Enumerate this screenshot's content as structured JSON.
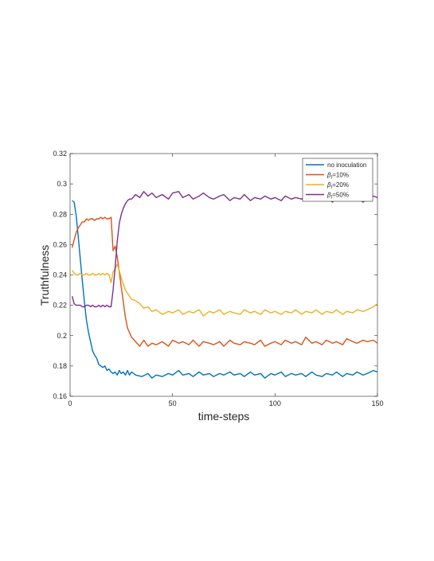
{
  "chart_data": {
    "type": "line",
    "xlabel": "time-steps",
    "ylabel": "Truthfulness",
    "xlim": [
      0,
      150
    ],
    "ylim": [
      0.16,
      0.32
    ],
    "xticks": [
      "0",
      "50",
      "100",
      "150"
    ],
    "yticks": [
      "0.16",
      "0.18",
      "0.2",
      "0.22",
      "0.24",
      "0.26",
      "0.28",
      "0.3",
      "0.32"
    ],
    "grid": false,
    "legend_position": "top-right",
    "series": [
      {
        "name": "no inoculation",
        "color": "#0072BD",
        "x": [
          1,
          2,
          3,
          4,
          5,
          6,
          7,
          8,
          9,
          10,
          11,
          12,
          13,
          14,
          15,
          16,
          17,
          18,
          19,
          20,
          21,
          22,
          23,
          24,
          25,
          26,
          27,
          28,
          29,
          30,
          32,
          35,
          38,
          40,
          42,
          45,
          48,
          50,
          53,
          55,
          58,
          60,
          63,
          65,
          68,
          70,
          73,
          75,
          78,
          80,
          83,
          85,
          88,
          90,
          93,
          95,
          98,
          100,
          103,
          105,
          108,
          110,
          113,
          115,
          118,
          120,
          123,
          125,
          128,
          130,
          133,
          135,
          138,
          140,
          143,
          145,
          148,
          150
        ],
        "y": [
          0.289,
          0.288,
          0.279,
          0.265,
          0.25,
          0.236,
          0.222,
          0.21,
          0.202,
          0.196,
          0.19,
          0.187,
          0.185,
          0.181,
          0.18,
          0.179,
          0.18,
          0.177,
          0.178,
          0.176,
          0.175,
          0.176,
          0.174,
          0.177,
          0.175,
          0.176,
          0.174,
          0.177,
          0.174,
          0.176,
          0.174,
          0.173,
          0.175,
          0.172,
          0.174,
          0.173,
          0.175,
          0.174,
          0.177,
          0.174,
          0.175,
          0.173,
          0.176,
          0.174,
          0.175,
          0.173,
          0.175,
          0.174,
          0.176,
          0.174,
          0.175,
          0.173,
          0.176,
          0.174,
          0.175,
          0.172,
          0.175,
          0.174,
          0.176,
          0.173,
          0.175,
          0.174,
          0.175,
          0.173,
          0.176,
          0.174,
          0.173,
          0.175,
          0.174,
          0.176,
          0.173,
          0.175,
          0.174,
          0.176,
          0.174,
          0.175,
          0.177,
          0.176
        ]
      },
      {
        "name": "β_I=10%",
        "color": "#D95319",
        "x": [
          1,
          2,
          3,
          4,
          5,
          6,
          7,
          8,
          9,
          10,
          11,
          12,
          13,
          14,
          15,
          16,
          17,
          18,
          19,
          20,
          21,
          22,
          23,
          24,
          25,
          26,
          27,
          28,
          29,
          30,
          32,
          34,
          36,
          38,
          40,
          42,
          45,
          48,
          50,
          53,
          55,
          58,
          60,
          63,
          65,
          68,
          70,
          73,
          75,
          78,
          80,
          83,
          85,
          88,
          90,
          93,
          95,
          98,
          100,
          103,
          105,
          108,
          110,
          113,
          115,
          118,
          120,
          123,
          125,
          128,
          130,
          133,
          135,
          138,
          140,
          143,
          145,
          148,
          150
        ],
        "y": [
          0.258,
          0.263,
          0.268,
          0.271,
          0.273,
          0.275,
          0.275,
          0.277,
          0.276,
          0.277,
          0.277,
          0.276,
          0.277,
          0.277,
          0.278,
          0.277,
          0.278,
          0.277,
          0.277,
          0.278,
          0.256,
          0.259,
          0.252,
          0.242,
          0.232,
          0.222,
          0.212,
          0.205,
          0.202,
          0.199,
          0.196,
          0.193,
          0.197,
          0.193,
          0.195,
          0.194,
          0.196,
          0.193,
          0.197,
          0.195,
          0.196,
          0.194,
          0.197,
          0.193,
          0.196,
          0.195,
          0.194,
          0.196,
          0.193,
          0.197,
          0.195,
          0.194,
          0.196,
          0.195,
          0.194,
          0.197,
          0.193,
          0.195,
          0.196,
          0.194,
          0.197,
          0.195,
          0.196,
          0.194,
          0.199,
          0.195,
          0.196,
          0.194,
          0.197,
          0.195,
          0.196,
          0.194,
          0.198,
          0.196,
          0.195,
          0.197,
          0.196,
          0.197,
          0.195
        ]
      },
      {
        "name": "β_I=20%",
        "color": "#EDB120",
        "x": [
          1,
          2,
          3,
          4,
          5,
          6,
          7,
          8,
          9,
          10,
          11,
          12,
          13,
          14,
          15,
          16,
          17,
          18,
          19,
          20,
          21,
          22,
          23,
          24,
          25,
          26,
          27,
          28,
          29,
          30,
          32,
          34,
          36,
          38,
          40,
          42,
          45,
          48,
          50,
          53,
          55,
          58,
          60,
          63,
          65,
          68,
          70,
          73,
          75,
          78,
          80,
          83,
          85,
          88,
          90,
          93,
          95,
          98,
          100,
          103,
          105,
          108,
          110,
          113,
          115,
          118,
          120,
          123,
          125,
          128,
          130,
          133,
          135,
          138,
          140,
          143,
          145,
          148,
          150
        ],
        "y": [
          0.243,
          0.241,
          0.24,
          0.24,
          0.241,
          0.24,
          0.24,
          0.241,
          0.24,
          0.24,
          0.241,
          0.24,
          0.24,
          0.241,
          0.24,
          0.241,
          0.24,
          0.241,
          0.24,
          0.235,
          0.242,
          0.244,
          0.247,
          0.243,
          0.238,
          0.234,
          0.23,
          0.228,
          0.226,
          0.224,
          0.223,
          0.221,
          0.218,
          0.219,
          0.216,
          0.217,
          0.214,
          0.216,
          0.215,
          0.217,
          0.214,
          0.216,
          0.215,
          0.217,
          0.213,
          0.216,
          0.215,
          0.217,
          0.214,
          0.216,
          0.215,
          0.214,
          0.217,
          0.215,
          0.216,
          0.214,
          0.217,
          0.215,
          0.216,
          0.214,
          0.216,
          0.215,
          0.217,
          0.214,
          0.216,
          0.215,
          0.217,
          0.214,
          0.216,
          0.215,
          0.217,
          0.214,
          0.216,
          0.215,
          0.217,
          0.216,
          0.217,
          0.219,
          0.221
        ]
      },
      {
        "name": "β_I=50%",
        "color": "#7E2F8E",
        "x": [
          1,
          2,
          3,
          4,
          5,
          6,
          7,
          8,
          9,
          10,
          11,
          12,
          13,
          14,
          15,
          16,
          17,
          18,
          19,
          20,
          21,
          22,
          23,
          24,
          25,
          26,
          27,
          28,
          29,
          30,
          32,
          34,
          36,
          38,
          40,
          42,
          45,
          48,
          50,
          53,
          55,
          58,
          60,
          63,
          65,
          68,
          70,
          73,
          75,
          78,
          80,
          83,
          85,
          88,
          90,
          93,
          95,
          98,
          100,
          103,
          105,
          108,
          110,
          113,
          115,
          118,
          120,
          123,
          125,
          128,
          130,
          133,
          135,
          138,
          140,
          143,
          145,
          148,
          150
        ],
        "y": [
          0.226,
          0.221,
          0.22,
          0.22,
          0.22,
          0.219,
          0.219,
          0.22,
          0.22,
          0.219,
          0.22,
          0.219,
          0.219,
          0.22,
          0.219,
          0.22,
          0.219,
          0.22,
          0.219,
          0.219,
          0.23,
          0.245,
          0.262,
          0.274,
          0.28,
          0.284,
          0.287,
          0.289,
          0.29,
          0.29,
          0.293,
          0.291,
          0.295,
          0.292,
          0.294,
          0.291,
          0.293,
          0.29,
          0.294,
          0.295,
          0.291,
          0.293,
          0.29,
          0.292,
          0.294,
          0.291,
          0.29,
          0.292,
          0.293,
          0.289,
          0.291,
          0.29,
          0.293,
          0.289,
          0.291,
          0.29,
          0.292,
          0.29,
          0.291,
          0.289,
          0.292,
          0.29,
          0.291,
          0.29,
          0.292,
          0.289,
          0.291,
          0.29,
          0.292,
          0.288,
          0.291,
          0.29,
          0.292,
          0.289,
          0.291,
          0.288,
          0.29,
          0.292,
          0.291
        ]
      }
    ]
  }
}
